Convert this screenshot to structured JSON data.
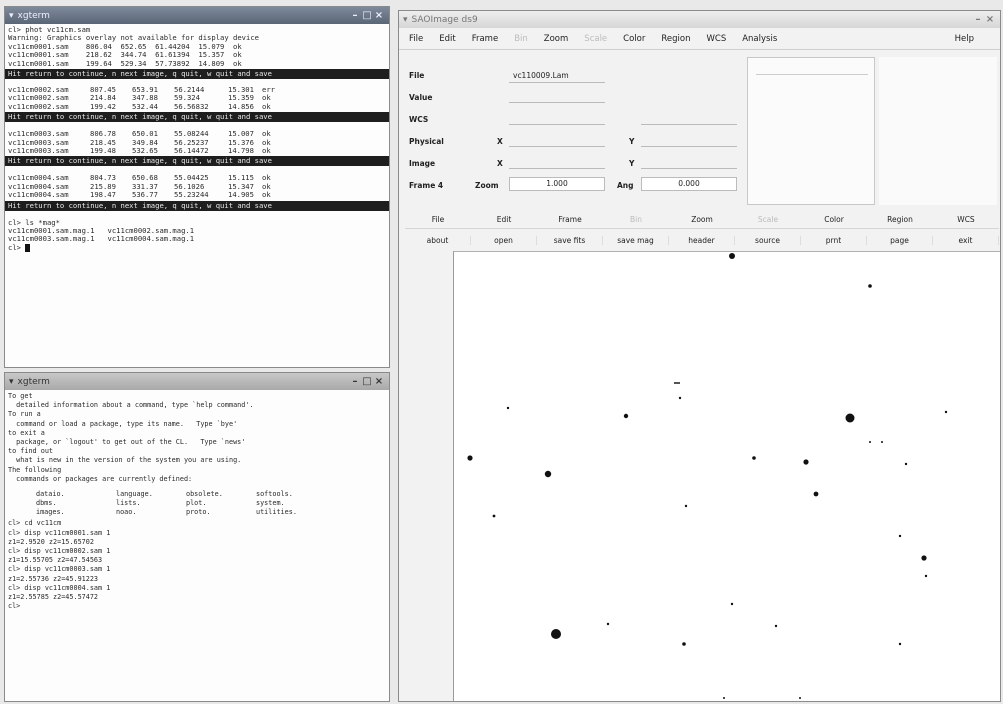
{
  "xterm": {
    "title": "xgterm",
    "lines_top": [
      "cl> phot vc11cm.sam",
      "Warning: Graphics overlay not available for display device",
      "vc11cm0001.sam    806.04  652.65  61.44204  15.079  ok",
      "vc11cm0001.sam    218.62  344.74  61.61394  15.357  ok",
      "vc11cm0001.sam    199.64  529.34  57.73892  14.809  ok"
    ],
    "prompt_line": "Hit return to continue, n next image, q quit, w quit and save",
    "blocks": [
      [
        [
          "vc11cm0002.sam",
          "807.45",
          "653.91",
          "56.2144",
          "15.301",
          "err"
        ],
        [
          "vc11cm0002.sam",
          "214.84",
          "347.88",
          "59.324",
          "15.359",
          "ok"
        ],
        [
          "vc11cm0002.sam",
          "199.42",
          "532.44",
          "56.56832",
          "14.856",
          "ok"
        ]
      ],
      [
        [
          "vc11cm0003.sam",
          "806.78",
          "650.01",
          "55.08244",
          "15.007",
          "ok"
        ],
        [
          "vc11cm0003.sam",
          "218.45",
          "349.84",
          "56.25237",
          "15.376",
          "ok"
        ],
        [
          "vc11cm0003.sam",
          "199.48",
          "532.65",
          "56.14472",
          "14.798",
          "ok"
        ]
      ],
      [
        [
          "vc11cm0004.sam",
          "804.73",
          "650.68",
          "55.04425",
          "15.115",
          "ok"
        ],
        [
          "vc11cm0004.sam",
          "215.89",
          "331.37",
          "56.1026",
          "15.347",
          "ok"
        ],
        [
          "vc11cm0004.sam",
          "198.47",
          "536.77",
          "55.23244",
          "14.905",
          "ok"
        ]
      ]
    ],
    "ls_cmd": "cl> ls *mag*",
    "ls_rows": [
      "vc11cm0001.sam.mag.1   vc11cm0002.sam.mag.1",
      "vc11cm0003.sam.mag.1   vc11cm0004.sam.mag.1"
    ],
    "final_prompt": "cl>"
  },
  "cl_window": {
    "title": "xgterm",
    "lines": [
      "To get",
      "  detailed information about a command, type `help command'.",
      "To run a",
      "  command or load a package, type its name.   Type `bye'",
      "to exit a",
      "  package, or `logout' to get out of the CL.   Type `news'",
      "to find out",
      "  what is new in the version of the system you are using.",
      "The following",
      "  commands or packages are currently defined:"
    ],
    "packages": [
      [
        "dataio.",
        "language.",
        "obsolete.",
        "softools."
      ],
      [
        "dbms.",
        "lists.",
        "plot.",
        "system."
      ],
      [
        "images.",
        "noao.",
        "proto.",
        "utilities."
      ]
    ],
    "history": [
      "cl> cd vc11cm",
      "cl> disp vc11cm0001.sam 1",
      "z1=2.9520 z2=15.65702",
      "cl> disp vc11cm0002.sam 1",
      "z1=15.55705 z2=47.54563",
      "cl> disp vc11cm0003.sam 1",
      "z1=2.55736 z2=45.91223",
      "cl> disp vc11cm0004.sam 1",
      "z1=2.55785 z2=45.57472",
      "cl>"
    ]
  },
  "ds9": {
    "title": "SAOImage ds9",
    "menu": [
      "File",
      "Edit",
      "Frame",
      "Bin",
      "Zoom",
      "Scale",
      "Color",
      "Region",
      "WCS",
      "Analysis"
    ],
    "menu_dim": [
      "Bin",
      "Scale"
    ],
    "help": "Help",
    "info": {
      "file_label": "File",
      "file_value": "vc110009.Lam",
      "value_label": "Value",
      "wcs_label": "WCS",
      "physical_label": "Physical",
      "image_label": "Image",
      "x_label": "X",
      "y_label": "Y",
      "frame_label": "Frame 4",
      "zoom_label": "Zoom",
      "zoom_value": "1.000",
      "angle_label": "Ang",
      "angle_value": "0.000"
    },
    "buttons_major": [
      "File",
      "Edit",
      "Frame",
      "Bin",
      "Zoom",
      "Scale",
      "Color",
      "Region",
      "WCS"
    ],
    "buttons_major_dim": [
      "Bin",
      "Scale"
    ],
    "buttons_minor": [
      "about",
      "open",
      "save fits",
      "save mag",
      "header",
      "source",
      "prnt",
      "page",
      "exit"
    ]
  }
}
